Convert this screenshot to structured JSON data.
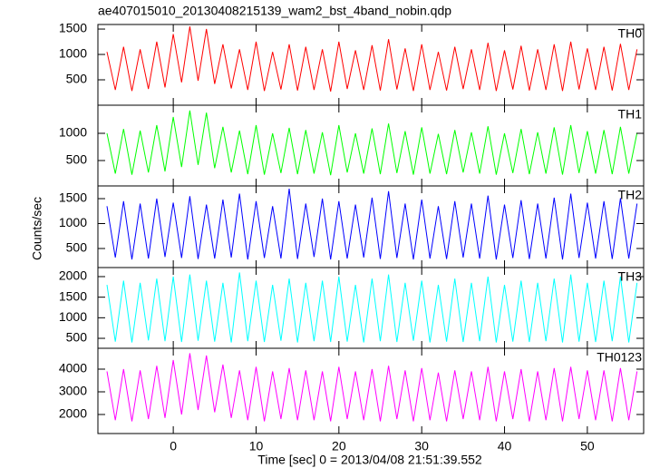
{
  "title": "ae407015010_20130408215139_wam2_bst_4band_nobin.qdp",
  "x_label": "Time [sec] 0 = 2013/04/08 21:51:39.552",
  "y_label": "Counts/sec",
  "chart_data": [
    {
      "type": "line",
      "xlim": [
        -9.1,
        56.8
      ],
      "ylim": [
        0,
        1590
      ],
      "yticks": [
        500,
        1000,
        1500
      ],
      "x": [
        -8,
        -7,
        -6,
        -5,
        -4,
        -3,
        -2,
        -1,
        0,
        1,
        2,
        3,
        4,
        5,
        6,
        7,
        8,
        9,
        10,
        11,
        12,
        13,
        14,
        15,
        16,
        17,
        18,
        19,
        20,
        21,
        22,
        23,
        24,
        25,
        26,
        27,
        28,
        29,
        30,
        31,
        32,
        33,
        34,
        35,
        36,
        37,
        38,
        39,
        40,
        41,
        42,
        43,
        44,
        45,
        46,
        47,
        48,
        49,
        50,
        51,
        52,
        53,
        54,
        55,
        56
      ],
      "series": [
        {
          "name": "TH0",
          "color": "#ff0000",
          "values": [
            1050,
            300,
            1150,
            280,
            1100,
            320,
            1250,
            350,
            1400,
            450,
            1550,
            480,
            1500,
            420,
            1200,
            330,
            1100,
            300,
            1250,
            280,
            1050,
            310,
            1200,
            290,
            1150,
            300,
            1100,
            270,
            1250,
            320,
            1080,
            300,
            1180,
            290,
            1300,
            310,
            1120,
            280,
            1200,
            300,
            1050,
            290,
            1150,
            320,
            1100,
            300,
            1230,
            280,
            1080,
            310,
            1170,
            290,
            1100,
            300,
            1200,
            280,
            1250,
            310,
            1120,
            300,
            1150,
            290,
            1210,
            300,
            1100
          ]
        }
      ]
    },
    {
      "type": "line",
      "xlim": [
        -9.1,
        56.8
      ],
      "ylim": [
        33,
        1517
      ],
      "yticks": [
        500,
        1000
      ],
      "x": [
        -8,
        -7,
        -6,
        -5,
        -4,
        -3,
        -2,
        -1,
        0,
        1,
        2,
        3,
        4,
        5,
        6,
        7,
        8,
        9,
        10,
        11,
        12,
        13,
        14,
        15,
        16,
        17,
        18,
        19,
        20,
        21,
        22,
        23,
        24,
        25,
        26,
        27,
        28,
        29,
        30,
        31,
        32,
        33,
        34,
        35,
        36,
        37,
        38,
        39,
        40,
        41,
        42,
        43,
        44,
        45,
        46,
        47,
        48,
        49,
        50,
        51,
        52,
        53,
        54,
        55,
        56
      ],
      "series": [
        {
          "name": "TH1",
          "color": "#00ff00",
          "values": [
            1000,
            260,
            1080,
            240,
            1050,
            280,
            1150,
            300,
            1300,
            380,
            1420,
            420,
            1380,
            360,
            1120,
            280,
            1050,
            250,
            1150,
            240,
            1000,
            270,
            1100,
            250,
            1060,
            260,
            1020,
            230,
            1150,
            280,
            1000,
            260,
            1090,
            250,
            1180,
            270,
            1040,
            240,
            1110,
            260,
            990,
            250,
            1060,
            280,
            1020,
            260,
            1130,
            240,
            1000,
            270,
            1080,
            250,
            1020,
            260,
            1110,
            240,
            1150,
            270,
            1040,
            260,
            1060,
            250,
            1120,
            260,
            1010
          ]
        }
      ]
    },
    {
      "type": "line",
      "xlim": [
        -9.1,
        56.8
      ],
      "ylim": [
        118,
        1755
      ],
      "yticks": [
        500,
        1000,
        1500
      ],
      "x": [
        -8,
        -7,
        -6,
        -5,
        -4,
        -3,
        -2,
        -1,
        0,
        1,
        2,
        3,
        4,
        5,
        6,
        7,
        8,
        9,
        10,
        11,
        12,
        13,
        14,
        15,
        16,
        17,
        18,
        19,
        20,
        21,
        22,
        23,
        24,
        25,
        26,
        27,
        28,
        29,
        30,
        31,
        32,
        33,
        34,
        35,
        36,
        37,
        38,
        39,
        40,
        41,
        42,
        43,
        44,
        45,
        46,
        47,
        48,
        49,
        50,
        51,
        52,
        53,
        54,
        55,
        56
      ],
      "series": [
        {
          "name": "TH2",
          "color": "#0000ff",
          "values": [
            1350,
            320,
            1450,
            280,
            1400,
            300,
            1500,
            330,
            1420,
            310,
            1550,
            290,
            1380,
            300,
            1480,
            320,
            1600,
            280,
            1450,
            310,
            1350,
            300,
            1700,
            290,
            1400,
            330,
            1500,
            280,
            1450,
            300,
            1380,
            320,
            1520,
            290,
            1650,
            310,
            1400,
            280,
            1480,
            300,
            1350,
            290,
            1450,
            320,
            1400,
            300,
            1560,
            280,
            1380,
            310,
            1470,
            290,
            1400,
            300,
            1520,
            280,
            1600,
            310,
            1420,
            300,
            1450,
            290,
            1510,
            300,
            1400
          ]
        }
      ]
    },
    {
      "type": "line",
      "xlim": [
        -9.1,
        56.8
      ],
      "ylim": [
        258,
        2220
      ],
      "yticks": [
        500,
        1000,
        1500,
        2000
      ],
      "x": [
        -8,
        -7,
        -6,
        -5,
        -4,
        -3,
        -2,
        -1,
        0,
        1,
        2,
        3,
        4,
        5,
        6,
        7,
        8,
        9,
        10,
        11,
        12,
        13,
        14,
        15,
        16,
        17,
        18,
        19,
        20,
        21,
        22,
        23,
        24,
        25,
        26,
        27,
        28,
        29,
        30,
        31,
        32,
        33,
        34,
        35,
        36,
        37,
        38,
        39,
        40,
        41,
        42,
        43,
        44,
        45,
        46,
        47,
        48,
        49,
        50,
        51,
        52,
        53,
        54,
        55,
        56
      ],
      "series": [
        {
          "name": "TH3",
          "color": "#00ffff",
          "values": [
            1800,
            420,
            1900,
            400,
            1850,
            450,
            1950,
            430,
            2000,
            410,
            2050,
            440,
            1900,
            420,
            1850,
            400,
            2100,
            430,
            1900,
            410,
            1800,
            440,
            1950,
            400,
            1850,
            430,
            1900,
            410,
            2000,
            420,
            1800,
            400,
            1950,
            430,
            2050,
            410,
            1850,
            440,
            1900,
            400,
            1800,
            420,
            1950,
            410,
            1850,
            430,
            2000,
            400,
            1800,
            420,
            1900,
            410,
            1850,
            430,
            1950,
            400,
            2050,
            420,
            1850,
            410,
            1900,
            430,
            2000,
            400,
            1850
          ]
        }
      ]
    },
    {
      "type": "line",
      "xlim": [
        -9.1,
        56.8
      ],
      "ylim": [
        1160,
        4920
      ],
      "yticks": [
        2000,
        3000,
        4000
      ],
      "xticks": [
        0,
        10,
        20,
        30,
        40,
        50
      ],
      "x": [
        -8,
        -7,
        -6,
        -5,
        -4,
        -3,
        -2,
        -1,
        0,
        1,
        2,
        3,
        4,
        5,
        6,
        7,
        8,
        9,
        10,
        11,
        12,
        13,
        14,
        15,
        16,
        17,
        18,
        19,
        20,
        21,
        22,
        23,
        24,
        25,
        26,
        27,
        28,
        29,
        30,
        31,
        32,
        33,
        34,
        35,
        36,
        37,
        38,
        39,
        40,
        41,
        42,
        43,
        44,
        45,
        46,
        47,
        48,
        49,
        50,
        51,
        52,
        53,
        54,
        55,
        56
      ],
      "series": [
        {
          "name": "TH0123",
          "color": "#ff00ff",
          "values": [
            3900,
            1750,
            4000,
            1700,
            3950,
            1800,
            4150,
            1850,
            4400,
            2000,
            4700,
            2200,
            4600,
            2100,
            4200,
            1850,
            3950,
            1750,
            4100,
            1700,
            3900,
            1800,
            4050,
            1750,
            3950,
            1750,
            3900,
            1700,
            4100,
            1800,
            3900,
            1750,
            4000,
            1700,
            4150,
            1800,
            3950,
            1700,
            4050,
            1750,
            3850,
            1700,
            3950,
            1800,
            3900,
            1750,
            4100,
            1700,
            3900,
            1800,
            4000,
            1700,
            3900,
            1750,
            4050,
            1700,
            4100,
            1800,
            3950,
            1750,
            3950,
            1700,
            4050,
            1750,
            3900
          ]
        }
      ]
    }
  ]
}
